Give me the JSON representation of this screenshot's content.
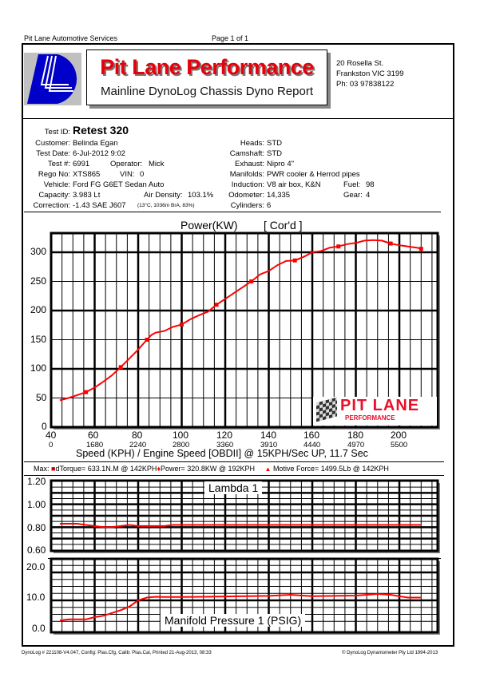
{
  "page_header": {
    "company": "Pit Lane Automotive Services",
    "page": "Page 1 of 1"
  },
  "brand": {
    "title": "Pit Lane Performance",
    "subtitle": "Mainline DynoLog Chassis Dyno Report",
    "address_line1": "20 Rosella St.",
    "address_line2": "Frankston VIC 3199",
    "phone": "Ph: 03 97838122",
    "title_color": "#e8000b",
    "logo_color": "#0000c8"
  },
  "test_info": {
    "left": [
      {
        "label": "Test ID:",
        "value": "Retest 320"
      },
      {
        "label": "Customer:",
        "value": "Belinda Egan"
      },
      {
        "label": "Test Date:",
        "value": "6-Jul-2012 9:02"
      },
      {
        "label": "Test #:",
        "value": "6991"
      },
      {
        "label": "Rego No:",
        "value": "XTS865"
      },
      {
        "label": "Vehicle:",
        "value": "Ford FG G6ET Sedan Auto"
      },
      {
        "label": "Capacity:",
        "value": "3.983 Lt"
      },
      {
        "label": "Correction:",
        "value": "-1.43 SAE J607"
      }
    ],
    "operator_label": "Operator:",
    "operator": "Mick",
    "vin_label": "VIN:",
    "vin": "0",
    "air_density_label": "Air Density:",
    "air_density": "103.1%",
    "correction_note": "(13°C, 1036m BrA, 83%)",
    "right": [
      {
        "label": "Heads:",
        "value": "STD"
      },
      {
        "label": "Camshaft:",
        "value": "STD"
      },
      {
        "label": "Exhaust:",
        "value": "Nipro 4\""
      },
      {
        "label": "Manifolds:",
        "value": "PWR cooler & Herrod pipes"
      },
      {
        "label": "Induction:",
        "value": "V8 air box, K&N"
      },
      {
        "label": "Odometer:",
        "value": "14,335"
      },
      {
        "label": "Cylinders:",
        "value": "6"
      }
    ],
    "fuel_label": "Fuel:",
    "fuel": "98",
    "gear_label": "Gear:",
    "gear": "4"
  },
  "max_line": {
    "prefix": "Max:",
    "torque": "dTorque= 633.1N.M @ 142KPH",
    "power": "Power= 320.8KW @ 192KPH",
    "force": "Motive Force= 1499.5Lb @ 142KPH"
  },
  "chart_data": [
    {
      "type": "line",
      "title": "Power(KW)     [ Cor'd ]",
      "xlabel": "Speed (KPH) / Engine Speed [OBDII] @ 15KPH/Sec UP, 11.7 Sec",
      "ylabel": "Power (KW)",
      "xlim": [
        40,
        217
      ],
      "ylim": [
        0,
        330
      ],
      "grid": true,
      "x_ticks": [
        40,
        60,
        80,
        100,
        120,
        140,
        160,
        180,
        200
      ],
      "x_ticks_secondary": [
        "0",
        "1680",
        "2240",
        "2800",
        "3360",
        "3910",
        "4440",
        "4970",
        "5500"
      ],
      "y_ticks": [
        0,
        50,
        100,
        150,
        200,
        250,
        300
      ],
      "series": [
        {
          "name": "Power (Cor'd)",
          "color": "#ff0000",
          "x": [
            44,
            48,
            52,
            56,
            60,
            64,
            68,
            72,
            76,
            80,
            84,
            86,
            88,
            92,
            96,
            100,
            104,
            108,
            112,
            116,
            120,
            124,
            128,
            132,
            136,
            140,
            144,
            148,
            152,
            156,
            160,
            164,
            168,
            172,
            176,
            180,
            184,
            188,
            192,
            196,
            200,
            204,
            208,
            210
          ],
          "y": [
            46,
            50,
            55,
            60,
            68,
            78,
            89,
            103,
            118,
            133,
            150,
            158,
            162,
            165,
            172,
            176,
            185,
            192,
            198,
            210,
            220,
            230,
            240,
            250,
            262,
            268,
            278,
            285,
            286,
            292,
            300,
            302,
            308,
            310,
            314,
            316,
            320,
            321,
            320,
            315,
            312,
            310,
            308,
            306
          ]
        }
      ],
      "max": {
        "power_kw": 320.8,
        "at_kph": 192
      }
    },
    {
      "type": "line",
      "title": "Lambda 1",
      "xlim": [
        40,
        217
      ],
      "ylim": [
        0.6,
        1.2
      ],
      "y_ticks": [
        "0.60",
        "0.80",
        "1.00",
        "1.20"
      ],
      "grid": true,
      "series": [
        {
          "name": "Lambda 1",
          "color": "#ff0000",
          "x": [
            44,
            52,
            56,
            60,
            64,
            68,
            72,
            76,
            80,
            84,
            92,
            96,
            104,
            110,
            120,
            130,
            140,
            150,
            160,
            170,
            180,
            190,
            200,
            210
          ],
          "y": [
            0.83,
            0.83,
            0.82,
            0.81,
            0.8,
            0.8,
            0.81,
            0.82,
            0.81,
            0.81,
            0.81,
            0.82,
            0.82,
            0.82,
            0.82,
            0.82,
            0.82,
            0.82,
            0.82,
            0.82,
            0.82,
            0.82,
            0.82,
            0.82
          ]
        }
      ]
    },
    {
      "type": "line",
      "title": "Manifold Pressure 1 (PSIG)",
      "xlim": [
        40,
        217
      ],
      "ylim": [
        0,
        22
      ],
      "y_ticks": [
        "0.0",
        "10.0",
        "20.0"
      ],
      "grid": true,
      "series": [
        {
          "name": "Manifold Pressure 1 (PSIG)",
          "color": "#ff0000",
          "x": [
            44,
            48,
            56,
            60,
            64,
            68,
            72,
            76,
            80,
            84,
            88,
            92,
            100,
            120,
            140,
            150,
            160,
            170,
            180,
            190,
            196,
            200,
            204,
            210
          ],
          "y": [
            2.8,
            3.2,
            3.2,
            4.0,
            4.5,
            5.5,
            6.5,
            7.8,
            10.0,
            11.0,
            11.3,
            11.2,
            11.2,
            11.4,
            11.6,
            12.0,
            11.5,
            11.6,
            11.7,
            12.3,
            12.0,
            11.5,
            11.0,
            11.0
          ]
        }
      ]
    }
  ],
  "charts_text": {
    "power_title": "Power(KW)",
    "power_corr": "[ Cor'd ]",
    "lambda_title": "Lambda 1",
    "map_title": "Manifold Pressure 1 (PSIG)",
    "x_label": "Speed (KPH) / Engine Speed [OBDII] @ 15KPH/Sec UP, 11.7 Sec",
    "watermark_line1": "PIT LANE",
    "watermark_line2": "PERFORMANCE"
  },
  "footer": {
    "left": "DynoLog # 221108-V4.047, Config: Plas.Cfg, Calib: Plas.Cal, Printed 21-Aug-2013, 08:33",
    "right": "© DynoLog Dynamometer Pty Ltd 1994-2013"
  }
}
